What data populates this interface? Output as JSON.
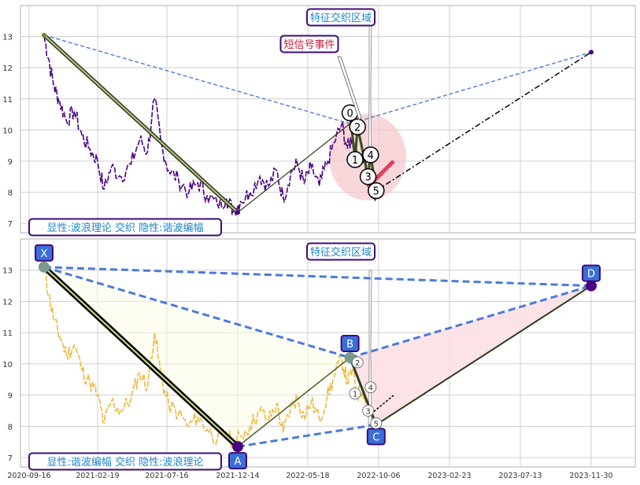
{
  "colors": {
    "grid": "#cfcfcf",
    "frame": "#b0b0b0",
    "price_top": "#4b0082",
    "price_bottom": "#f0b840",
    "zigzag": "#000000",
    "harmonic_leg": "#4a7bd8",
    "label_box": "#3a6fd8",
    "label_border": "#3d0a7a",
    "ellipse": "#f6c9cf",
    "triangle": "#fde0e4",
    "title_text": "#1f86c8",
    "event_text": "#c0203a",
    "projection": "#000000",
    "top_xa_line": "#556b2f"
  },
  "chart_data": [
    {
      "type": "line",
      "panel": "top",
      "ylim": [
        6.7,
        14
      ],
      "y_ticks": [
        7,
        8,
        9,
        10,
        11,
        12,
        13
      ],
      "grid": true,
      "title": "特征交织区域",
      "annotation_event": "短信号事件",
      "caption": "显性:波浪理论 交织 隐性:谐波编幅",
      "price_series": [
        [
          "2020-10-20",
          13.0
        ],
        [
          "2020-11-01",
          12.2
        ],
        [
          "2020-11-12",
          11.4
        ],
        [
          "2020-11-25",
          10.9
        ],
        [
          "2020-12-10",
          10.3
        ],
        [
          "2020-12-28",
          10.6
        ],
        [
          "2021-01-15",
          9.8
        ],
        [
          "2021-02-01",
          9.4
        ],
        [
          "2021-02-19",
          9.0
        ],
        [
          "2021-03-05",
          8.1
        ],
        [
          "2021-03-20",
          8.8
        ],
        [
          "2021-04-10",
          8.5
        ],
        [
          "2021-05-01",
          8.9
        ],
        [
          "2021-05-20",
          9.7
        ],
        [
          "2021-06-05",
          9.3
        ],
        [
          "2021-06-20",
          11.0
        ],
        [
          "2021-07-05",
          9.5
        ],
        [
          "2021-07-20",
          8.7
        ],
        [
          "2021-08-10",
          8.4
        ],
        [
          "2021-09-01",
          8.0
        ],
        [
          "2021-09-20",
          8.3
        ],
        [
          "2021-10-10",
          7.9
        ],
        [
          "2021-11-01",
          7.6
        ],
        [
          "2021-11-20",
          7.8
        ],
        [
          "2021-12-05",
          7.4
        ],
        [
          "2021-12-20",
          7.7
        ],
        [
          "2022-01-10",
          8.0
        ],
        [
          "2022-02-01",
          8.5
        ],
        [
          "2022-02-20",
          8.2
        ],
        [
          "2022-03-10",
          8.7
        ],
        [
          "2022-03-25",
          7.8
        ],
        [
          "2022-04-10",
          8.6
        ],
        [
          "2022-04-25",
          8.9
        ],
        [
          "2022-05-10",
          8.3
        ],
        [
          "2022-05-25",
          8.8
        ],
        [
          "2022-06-10",
          8.2
        ],
        [
          "2022-06-25",
          8.9
        ],
        [
          "2022-07-10",
          9.6
        ],
        [
          "2022-07-25",
          10.2
        ],
        [
          "2022-08-05",
          9.4
        ],
        [
          "2022-08-15",
          9.8
        ],
        [
          "2022-08-25",
          9.0
        ],
        [
          "2022-09-05",
          9.2
        ],
        [
          "2022-09-15",
          8.5
        ],
        [
          "2022-09-25",
          8.2
        ],
        [
          "2022-10-01",
          7.8
        ]
      ],
      "xa_line": [
        [
          "2020-10-20",
          13.05
        ],
        [
          "2021-12-14",
          7.35
        ]
      ],
      "upper_dashed": [
        [
          "2020-10-20",
          13.05
        ],
        [
          "2022-08-10",
          10.2
        ],
        [
          "2023-11-30",
          12.5
        ]
      ],
      "lower_solid": [
        [
          "2021-12-14",
          7.35
        ],
        [
          "2022-08-10",
          10.2
        ]
      ],
      "projection_line": [
        [
          "2022-10-01",
          8.05
        ],
        [
          "2023-11-30",
          12.5
        ]
      ],
      "wave_points": [
        {
          "label": "0",
          "date": "2022-08-10",
          "value": 10.55
        },
        {
          "label": "2",
          "date": "2022-08-25",
          "value": 10.1
        },
        {
          "label": "1",
          "date": "2022-08-20",
          "value": 9.05
        },
        {
          "label": "4",
          "date": "2022-09-20",
          "value": 9.2
        },
        {
          "label": "3",
          "date": "2022-09-15",
          "value": 8.5
        },
        {
          "label": "5",
          "date": "2022-10-01",
          "value": 8.05
        }
      ]
    },
    {
      "type": "line",
      "panel": "bottom",
      "ylim": [
        6.7,
        14
      ],
      "y_ticks": [
        7,
        8,
        9,
        10,
        11,
        12,
        13
      ],
      "x_ticks": [
        "2020-09-16",
        "2021-02-19",
        "2021-07-16",
        "2021-12-14",
        "2022-05-18",
        "2022-10-06",
        "2023-02-23",
        "2023-07-13",
        "2023-11-30"
      ],
      "grid": true,
      "title": "特征交织区域",
      "caption": "显性:谐波编幅 交织 隐性:波浪理论",
      "harmonic_points": [
        {
          "label": "X",
          "date": "2020-10-20",
          "value": 13.1
        },
        {
          "label": "A",
          "date": "2021-12-14",
          "value": 7.35
        },
        {
          "label": "B",
          "date": "2022-08-10",
          "value": 10.2
        },
        {
          "label": "C",
          "date": "2022-10-01",
          "value": 8.05
        },
        {
          "label": "D",
          "date": "2023-11-30",
          "value": 12.5
        }
      ],
      "wave_labels_small": [
        {
          "label": "2",
          "date": "2022-08-25",
          "value": 10.05
        },
        {
          "label": "1",
          "date": "2022-08-20",
          "value": 9.05
        },
        {
          "label": "4",
          "date": "2022-09-20",
          "value": 9.25
        },
        {
          "label": "3",
          "date": "2022-09-15",
          "value": 8.5
        },
        {
          "label": "5",
          "date": "2022-10-01",
          "value": 8.1
        }
      ]
    }
  ]
}
